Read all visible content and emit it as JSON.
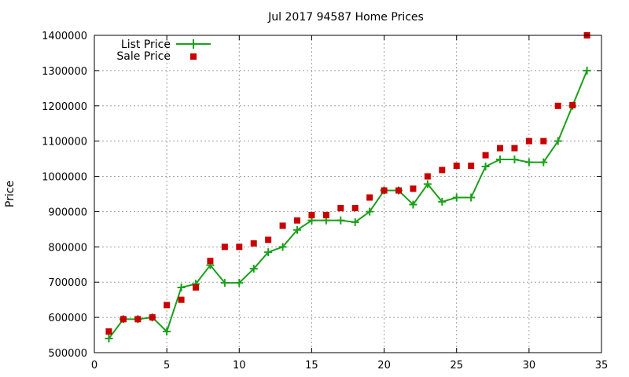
{
  "chart_data": {
    "type": "line",
    "title": "Jul 2017 94587 Home Prices",
    "xlabel": "",
    "ylabel": "Price",
    "xlim": [
      0,
      35
    ],
    "ylim": [
      500000,
      1400000
    ],
    "xticks": [
      0,
      5,
      10,
      15,
      20,
      25,
      30,
      35
    ],
    "yticks": [
      500000,
      600000,
      700000,
      800000,
      900000,
      1000000,
      1100000,
      1200000,
      1300000,
      1400000
    ],
    "x_tick_labels": [
      "0",
      "5",
      "10",
      "15",
      "20",
      "25",
      "30",
      "35"
    ],
    "y_tick_labels": [
      "500000",
      "600000",
      "700000",
      "800000",
      "900000",
      "1000000",
      "1100000",
      "1200000",
      "1300000",
      "1400000"
    ],
    "grid": true,
    "legend_position": "top-left",
    "series": [
      {
        "name": "List Price",
        "style": "line-with-plus",
        "color": "#1aa01a",
        "x": [
          1,
          2,
          3,
          4,
          5,
          6,
          7,
          8,
          9,
          10,
          11,
          12,
          13,
          14,
          15,
          16,
          17,
          18,
          19,
          20,
          21,
          22,
          23,
          24,
          25,
          26,
          27,
          28,
          29,
          30,
          31,
          32,
          33,
          34
        ],
        "y": [
          540000,
          595000,
          595000,
          600000,
          560000,
          685000,
          695000,
          748000,
          698000,
          698000,
          738000,
          785000,
          800000,
          848000,
          875000,
          875000,
          875000,
          870000,
          900000,
          960000,
          960000,
          920000,
          978000,
          928000,
          940000,
          940000,
          1028000,
          1048000,
          1048000,
          1040000,
          1040000,
          1100000,
          1200000,
          1300000
        ]
      },
      {
        "name": "Sale Price",
        "style": "square-markers",
        "color": "#c80000",
        "x": [
          1,
          2,
          3,
          4,
          5,
          6,
          7,
          8,
          9,
          10,
          11,
          12,
          13,
          14,
          15,
          16,
          17,
          18,
          19,
          20,
          21,
          22,
          23,
          24,
          25,
          26,
          27,
          28,
          29,
          30,
          31,
          32,
          33,
          34
        ],
        "y": [
          560000,
          595000,
          595000,
          600000,
          635000,
          650000,
          685000,
          760000,
          800000,
          800000,
          810000,
          820000,
          860000,
          875000,
          890000,
          890000,
          910000,
          910000,
          940000,
          960000,
          960000,
          965000,
          1000000,
          1018000,
          1030000,
          1030000,
          1060000,
          1080000,
          1080000,
          1100000,
          1100000,
          1200000,
          1202000,
          1400000
        ]
      }
    ]
  }
}
